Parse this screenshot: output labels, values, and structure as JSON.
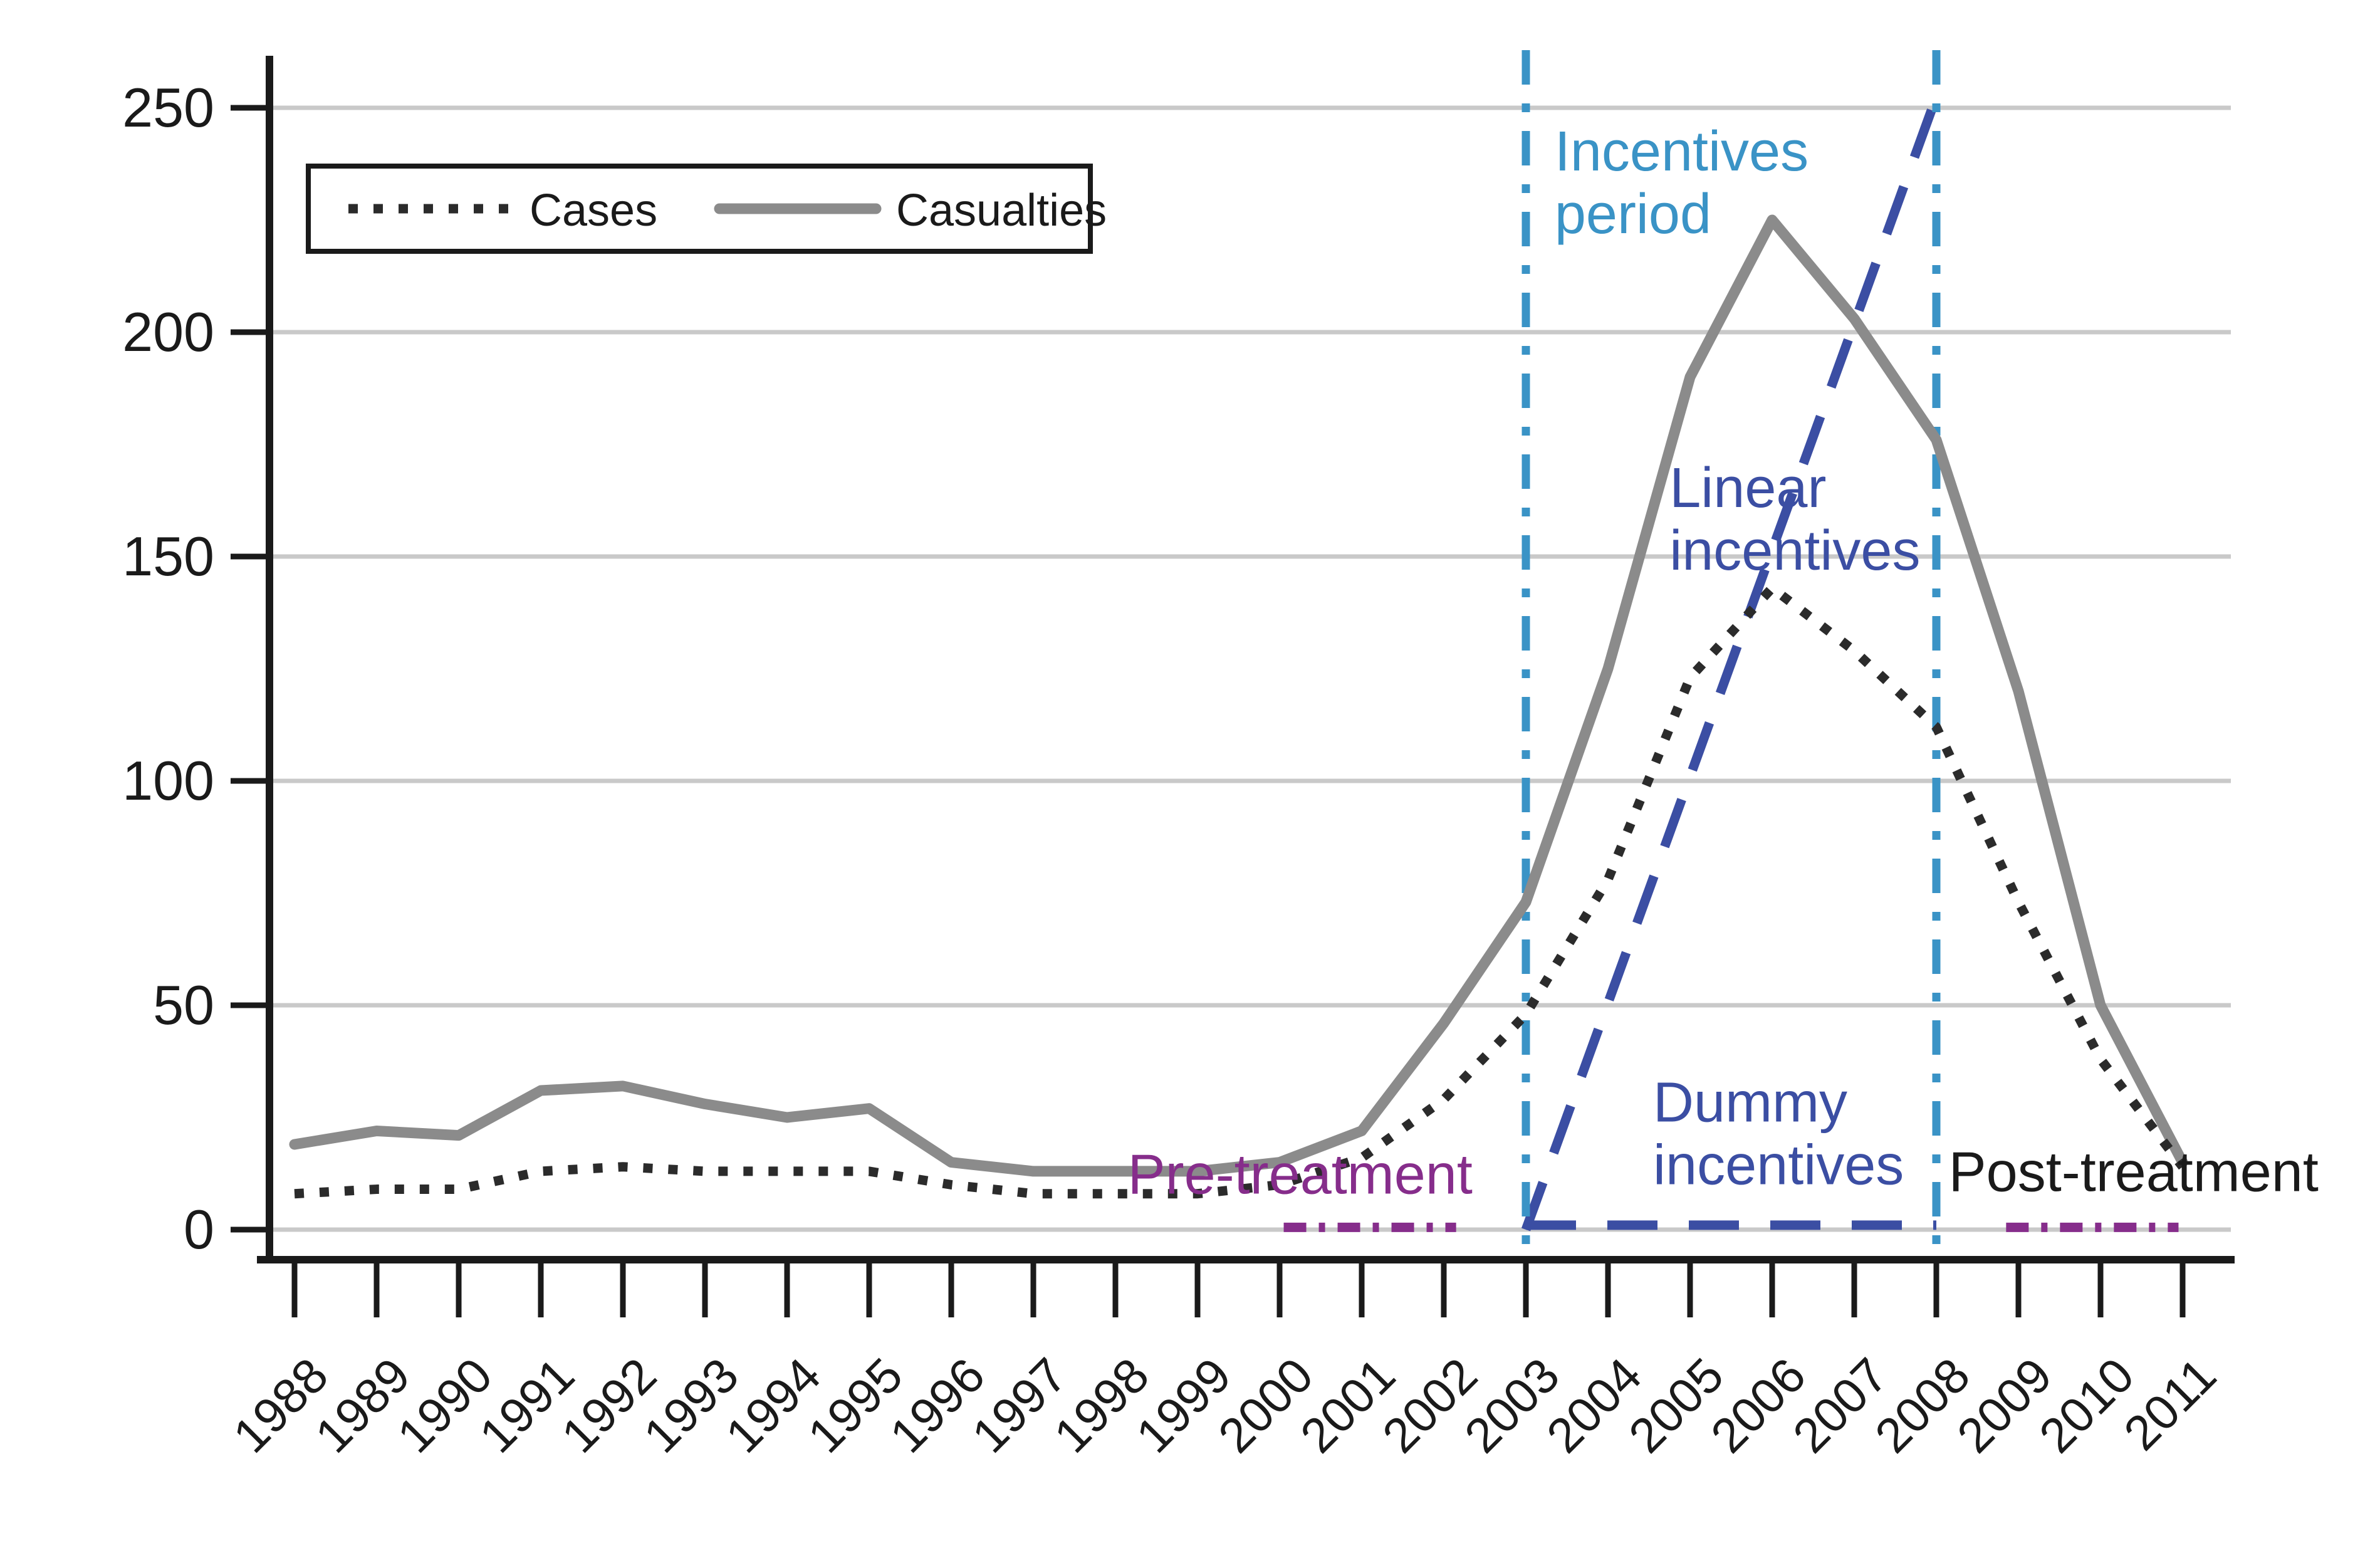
{
  "chart_data": {
    "type": "line",
    "title": "",
    "xlabel": "",
    "ylabel": "",
    "x": [
      1988,
      1989,
      1990,
      1991,
      1992,
      1993,
      1994,
      1995,
      1996,
      1997,
      1998,
      1999,
      2000,
      2001,
      2002,
      2003,
      2004,
      2005,
      2006,
      2007,
      2008,
      2009,
      2010,
      2011
    ],
    "series": [
      {
        "name": "Cases",
        "color": "#2b2b2b",
        "style": "dotted",
        "values": [
          8,
          9,
          9,
          13,
          14,
          13,
          13,
          13,
          10,
          8,
          8,
          8,
          10,
          16,
          29,
          48,
          78,
          123,
          143,
          129,
          112,
          73,
          38,
          14
        ]
      },
      {
        "name": "Casualties",
        "color": "#8b8b8b",
        "style": "solid",
        "values": [
          19,
          22,
          21,
          31,
          32,
          28,
          25,
          27,
          15,
          13,
          13,
          13,
          15,
          22,
          46,
          73,
          125,
          190,
          225,
          203,
          176,
          120,
          50,
          15
        ]
      }
    ],
    "ylim": [
      0,
      250
    ],
    "yticks": [
      0,
      50,
      100,
      150,
      200,
      250
    ],
    "xlim": [
      1988,
      2011
    ],
    "grid": "horizontal",
    "legend_position": "top-left",
    "annotations": {
      "vlines": [
        {
          "id": "incentives-start-line",
          "year": 2003,
          "color": "#3a93c6"
        },
        {
          "id": "incentives-end-line",
          "year": 2008,
          "color": "#3a93c6"
        }
      ],
      "segments": [
        {
          "id": "linear-incentives-line",
          "x1": 2003,
          "v1": 0,
          "x2": 2008.07,
          "v2": 256,
          "color": "#3b4ea3",
          "dash": "dash-blue"
        },
        {
          "id": "dummy-incentives-line",
          "x1": 2003,
          "v1": 1,
          "x2": 2008,
          "v2": 1,
          "color": "#3b4ea3",
          "dash": "dash-blue"
        },
        {
          "id": "pre-treatment-line",
          "x1": 2000.05,
          "v1": 0.5,
          "x2": 2002.15,
          "v2": 0.5,
          "color": "#862d8b",
          "dash": "dash-purple"
        },
        {
          "id": "post-treatment-line",
          "x1": 2008.85,
          "v1": 0.5,
          "x2": 2010.95,
          "v2": 0.5,
          "color": "#862d8b",
          "dash": "dash-purple"
        }
      ],
      "labels": [
        {
          "id": "incentives-period-label",
          "lines": [
            "Incentives",
            "period"
          ],
          "color": "#3a93c6",
          "year": 2003.35,
          "value": 245
        },
        {
          "id": "linear-incentives-label",
          "lines": [
            "Linear",
            "incentives"
          ],
          "color": "#3b4ea3",
          "year": 2004.75,
          "value": 170
        },
        {
          "id": "dummy-incentives-label",
          "lines": [
            "Dummy",
            "incentives"
          ],
          "color": "#3b4ea3",
          "year": 2004.55,
          "value": 33
        },
        {
          "id": "pre-treatment-label",
          "lines": [
            "Pre-treatment"
          ],
          "color": "#862d8b",
          "year": 1998.15,
          "value": 17
        },
        {
          "id": "post-treatment-label",
          "lines": [
            "Post-treatment"
          ],
          "color": "#1a1a1a",
          "year": 2008.15,
          "value": 17.5
        }
      ]
    }
  },
  "legend": {
    "items": [
      {
        "label": "Cases",
        "swatch": "dotted-black-line"
      },
      {
        "label": "Casualties",
        "swatch": "solid-gray-line"
      }
    ]
  }
}
